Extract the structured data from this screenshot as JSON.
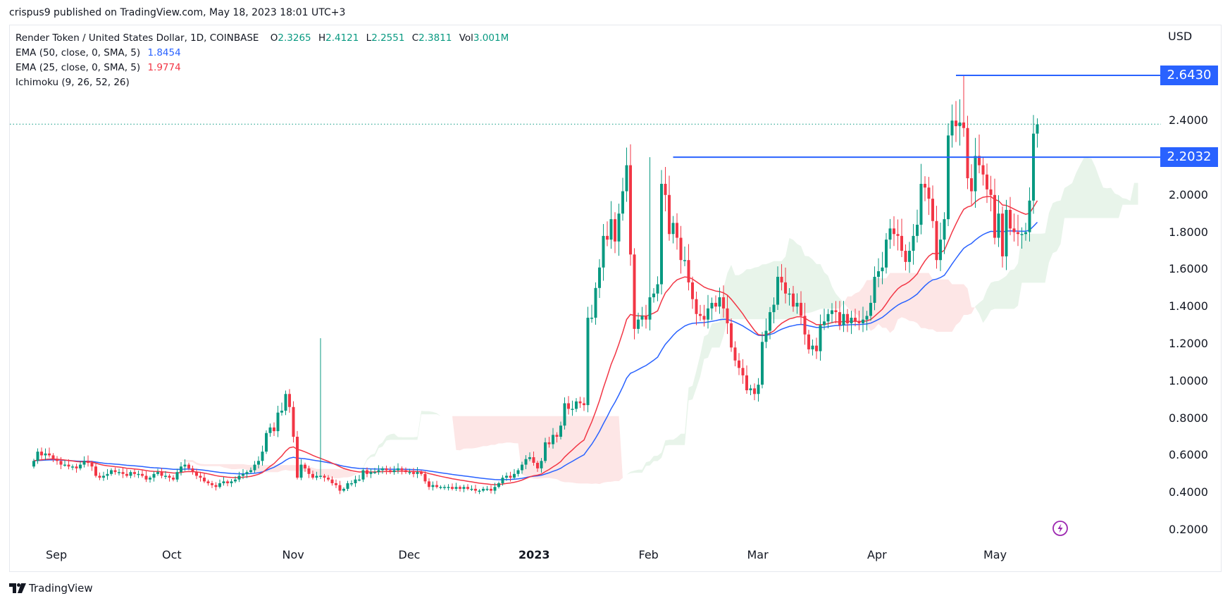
{
  "header": {
    "publisher_line": "crispus9 published on TradingView.com, May 18, 2023 18:01 UTC+3"
  },
  "legend": {
    "symbol": "Render Token / United States Dollar, 1D, COINBASE",
    "open_label": "O",
    "open": "2.3265",
    "high_label": "H",
    "high": "2.4121",
    "low_label": "L",
    "low": "2.2551",
    "close_label": "C",
    "close": "2.3811",
    "vol_label": "Vol",
    "vol": "3.001M",
    "ema50_label": "EMA (50, close, 0, SMA, 5)",
    "ema50_value": "1.8454",
    "ema25_label": "EMA (25, close, 0, SMA, 5)",
    "ema25_value": "1.9774",
    "ichimoku_label": "Ichimoku (9, 26, 52, 26)"
  },
  "footer": {
    "brand": "TradingView"
  },
  "colors": {
    "up": "#089981",
    "down": "#f23645",
    "ema50": "#2962ff",
    "ema25": "#f23645",
    "cloud_bull": "#e8f4ea",
    "cloud_bear": "#fde6e6",
    "hline": "#2962ff",
    "price_line": "#089981"
  },
  "chart_data": {
    "type": "candlestick",
    "title": "Render Token / United States Dollar, 1D, COINBASE",
    "xlabel": "",
    "ylabel": "USD",
    "ylim": [
      0.12,
      2.9
    ],
    "y_ticks": [
      "0.2000",
      "0.4000",
      "0.6000",
      "0.8000",
      "1.0000",
      "1.2000",
      "1.4000",
      "1.6000",
      "1.8000",
      "2.0000",
      "2.4000"
    ],
    "x_ticks": [
      {
        "label": "Sep",
        "day": 6
      },
      {
        "label": "Oct",
        "day": 36
      },
      {
        "label": "Nov",
        "day": 67
      },
      {
        "label": "Dec",
        "day": 97
      },
      {
        "label": "2023",
        "day": 128
      },
      {
        "label": "Feb",
        "day": 159
      },
      {
        "label": "Mar",
        "day": 187
      },
      {
        "label": "Apr",
        "day": 218
      },
      {
        "label": "May",
        "day": 248
      }
    ],
    "start_date": "2022-08-26",
    "horizontal_lines": [
      {
        "price": 2.643,
        "label": "2.6430",
        "start_day": 238
      },
      {
        "price": 2.2032,
        "label": "2.2032",
        "start_day": 165
      }
    ],
    "last_price": 2.3811,
    "annotations": [
      "EMA 50: 1.8454",
      "EMA 25: 1.9774",
      "Ichimoku cloud"
    ],
    "closes": [
      0.57,
      0.62,
      0.6,
      0.61,
      0.6,
      0.58,
      0.57,
      0.55,
      0.55,
      0.54,
      0.54,
      0.53,
      0.55,
      0.57,
      0.56,
      0.54,
      0.49,
      0.48,
      0.49,
      0.5,
      0.52,
      0.51,
      0.51,
      0.5,
      0.49,
      0.51,
      0.5,
      0.5,
      0.49,
      0.47,
      0.48,
      0.5,
      0.51,
      0.49,
      0.49,
      0.48,
      0.47,
      0.51,
      0.54,
      0.55,
      0.53,
      0.51,
      0.49,
      0.48,
      0.46,
      0.45,
      0.44,
      0.43,
      0.45,
      0.46,
      0.45,
      0.46,
      0.47,
      0.49,
      0.5,
      0.51,
      0.52,
      0.55,
      0.57,
      0.62,
      0.72,
      0.75,
      0.73,
      0.83,
      0.84,
      0.93,
      0.86,
      0.7,
      0.48,
      0.55,
      0.53,
      0.5,
      0.48,
      0.49,
      0.49,
      0.48,
      0.47,
      0.45,
      0.44,
      0.41,
      0.42,
      0.45,
      0.45,
      0.47,
      0.47,
      0.52,
      0.5,
      0.51,
      0.51,
      0.52,
      0.53,
      0.52,
      0.51,
      0.52,
      0.53,
      0.52,
      0.51,
      0.51,
      0.5,
      0.51,
      0.5,
      0.46,
      0.43,
      0.44,
      0.43,
      0.43,
      0.43,
      0.43,
      0.42,
      0.43,
      0.42,
      0.43,
      0.42,
      0.42,
      0.41,
      0.41,
      0.42,
      0.42,
      0.41,
      0.43,
      0.45,
      0.48,
      0.49,
      0.48,
      0.5,
      0.52,
      0.55,
      0.58,
      0.59,
      0.56,
      0.53,
      0.57,
      0.67,
      0.66,
      0.71,
      0.7,
      0.76,
      0.88,
      0.85,
      0.85,
      0.89,
      0.88,
      0.87,
      1.34,
      1.34,
      1.5,
      1.61,
      1.78,
      1.76,
      1.87,
      1.75,
      1.9,
      2.02,
      2.16,
      1.68,
      1.28,
      1.33,
      1.35,
      1.33,
      1.45,
      1.47,
      1.52,
      2.06,
      2.0,
      1.79,
      1.85,
      1.77,
      1.65,
      1.65,
      1.53,
      1.44,
      1.36,
      1.35,
      1.33,
      1.39,
      1.42,
      1.4,
      1.45,
      1.39,
      1.31,
      1.18,
      1.11,
      1.07,
      1.03,
      0.95,
      0.96,
      0.93,
      0.98,
      1.21,
      1.27,
      1.37,
      1.41,
      1.56,
      1.53,
      1.47,
      1.47,
      1.4,
      1.42,
      1.35,
      1.25,
      1.17,
      1.19,
      1.16,
      1.3,
      1.32,
      1.36,
      1.38,
      1.37,
      1.3,
      1.36,
      1.31,
      1.34,
      1.32,
      1.31,
      1.33,
      1.35,
      1.42,
      1.56,
      1.59,
      1.61,
      1.76,
      1.82,
      1.79,
      1.78,
      1.7,
      1.64,
      1.7,
      1.78,
      1.84,
      2.06,
      2.04,
      1.98,
      1.86,
      1.65,
      1.76,
      1.87,
      2.32,
      2.4,
      2.37,
      2.39,
      2.36,
      2.09,
      2.02,
      2.21,
      2.16,
      2.11,
      2.03,
      2.0,
      1.77,
      1.9,
      1.67,
      1.92,
      1.82,
      1.8,
      1.79,
      1.79,
      1.8,
      1.97,
      2.33,
      2.38
    ],
    "opens": [
      0.54,
      0.57,
      0.62,
      0.6,
      0.61,
      0.6,
      0.58,
      0.57,
      0.55,
      0.55,
      0.54,
      0.54,
      0.53,
      0.55,
      0.57,
      0.56,
      0.54,
      0.49,
      0.48,
      0.49,
      0.5,
      0.52,
      0.51,
      0.51,
      0.5,
      0.49,
      0.51,
      0.5,
      0.5,
      0.49,
      0.47,
      0.48,
      0.5,
      0.51,
      0.49,
      0.49,
      0.48,
      0.47,
      0.51,
      0.54,
      0.55,
      0.53,
      0.51,
      0.49,
      0.48,
      0.46,
      0.45,
      0.44,
      0.43,
      0.45,
      0.46,
      0.45,
      0.46,
      0.47,
      0.49,
      0.5,
      0.51,
      0.52,
      0.55,
      0.57,
      0.62,
      0.72,
      0.75,
      0.73,
      0.83,
      0.84,
      0.93,
      0.86,
      0.7,
      0.48,
      0.55,
      0.53,
      0.5,
      0.48,
      0.49,
      0.49,
      0.48,
      0.47,
      0.45,
      0.44,
      0.41,
      0.42,
      0.45,
      0.45,
      0.47,
      0.47,
      0.52,
      0.5,
      0.51,
      0.51,
      0.52,
      0.53,
      0.52,
      0.51,
      0.52,
      0.53,
      0.52,
      0.51,
      0.51,
      0.5,
      0.51,
      0.5,
      0.46,
      0.43,
      0.44,
      0.43,
      0.43,
      0.43,
      0.43,
      0.42,
      0.43,
      0.42,
      0.43,
      0.42,
      0.42,
      0.41,
      0.41,
      0.42,
      0.42,
      0.41,
      0.43,
      0.45,
      0.48,
      0.49,
      0.48,
      0.5,
      0.52,
      0.55,
      0.58,
      0.59,
      0.56,
      0.53,
      0.57,
      0.67,
      0.66,
      0.71,
      0.7,
      0.76,
      0.88,
      0.85,
      0.85,
      0.89,
      0.88,
      0.87,
      1.34,
      1.34,
      1.5,
      1.61,
      1.78,
      1.76,
      1.87,
      1.75,
      1.9,
      2.02,
      2.16,
      1.68,
      1.28,
      1.33,
      1.35,
      1.33,
      1.45,
      1.47,
      1.52,
      2.06,
      2.0,
      1.79,
      1.85,
      1.77,
      1.65,
      1.65,
      1.53,
      1.44,
      1.36,
      1.35,
      1.33,
      1.39,
      1.42,
      1.4,
      1.45,
      1.39,
      1.31,
      1.18,
      1.11,
      1.07,
      1.03,
      0.95,
      0.96,
      0.93,
      0.98,
      1.21,
      1.27,
      1.37,
      1.41,
      1.56,
      1.53,
      1.47,
      1.47,
      1.4,
      1.42,
      1.35,
      1.25,
      1.17,
      1.19,
      1.16,
      1.3,
      1.32,
      1.36,
      1.38,
      1.37,
      1.3,
      1.36,
      1.31,
      1.34,
      1.32,
      1.31,
      1.33,
      1.35,
      1.42,
      1.56,
      1.59,
      1.61,
      1.76,
      1.82,
      1.79,
      1.78,
      1.7,
      1.64,
      1.7,
      1.78,
      1.84,
      2.06,
      2.04,
      1.98,
      1.86,
      1.65,
      1.76,
      1.87,
      2.32,
      2.4,
      2.37,
      2.39,
      2.36,
      2.09,
      2.02,
      2.21,
      2.16,
      2.11,
      2.03,
      2.0,
      1.77,
      1.9,
      1.67,
      1.92,
      1.82,
      1.8,
      1.79,
      1.79,
      1.8,
      1.97,
      2.33
    ]
  }
}
